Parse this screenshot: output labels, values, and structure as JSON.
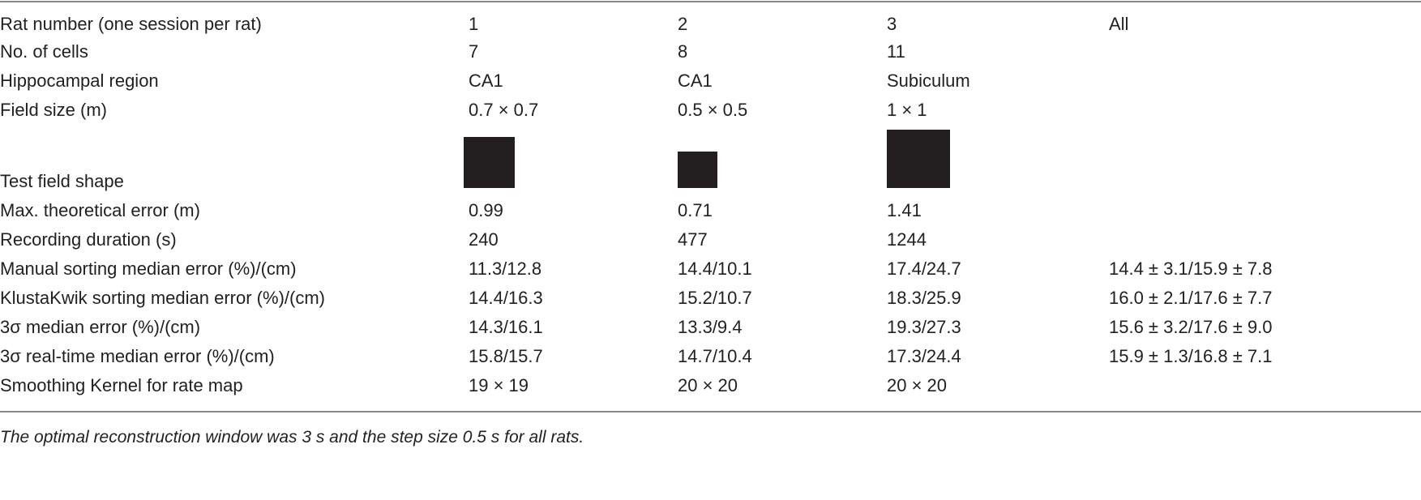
{
  "table": {
    "rows": [
      {
        "label": "Rat number (one session per rat)",
        "cells": [
          "1",
          "2",
          "3",
          "All"
        ]
      },
      {
        "label": "No. of cells",
        "cells": [
          "7",
          "8",
          "11",
          null
        ]
      },
      {
        "label": "Hippocampal region",
        "cells": [
          "CA1",
          "CA1",
          "Subiculum",
          null
        ]
      },
      {
        "label": "Field size (m)",
        "cells": [
          "0.7 × 0.7",
          "0.5 × 0.5",
          "1 × 1",
          null
        ]
      },
      {
        "label": "Test field shape",
        "cells": [
          null,
          null,
          null,
          null
        ]
      },
      {
        "label": "Max. theoretical error (m)",
        "cells": [
          "0.99",
          "0.71",
          "1.41",
          null
        ]
      },
      {
        "label": "Recording duration (s)",
        "cells": [
          "240",
          "477",
          "1244",
          null
        ]
      },
      {
        "label": "Manual sorting median error (%)/(cm)",
        "cells": [
          "11.3/12.8",
          "14.4/10.1",
          "17.4/24.7",
          "14.4 ± 3.1/15.9 ± 7.8"
        ]
      },
      {
        "label": "KlustaKwik sorting median error (%)/(cm)",
        "cells": [
          "14.4/16.3",
          "15.2/10.7",
          "18.3/25.9",
          "16.0 ± 2.1/17.6 ± 7.7"
        ]
      },
      {
        "label": "3σ median error (%)/(cm)",
        "cells": [
          "14.3/16.1",
          "13.3/9.4",
          "19.3/27.3",
          "15.6 ± 3.2/17.6 ± 9.0"
        ]
      },
      {
        "label": "3σ real-time median error (%)/(cm)",
        "cells": [
          "15.8/15.7",
          "14.7/10.4",
          "17.3/24.4",
          "15.9 ± 1.3/16.8 ± 7.1"
        ]
      },
      {
        "label": "Smoothing Kernel for rate map",
        "cells": [
          "19 × 19",
          "20 × 20",
          "20 × 20",
          null
        ]
      }
    ],
    "footnote": "The optimal reconstruction window was 3 s and the step size 0.5 s for all rats."
  }
}
